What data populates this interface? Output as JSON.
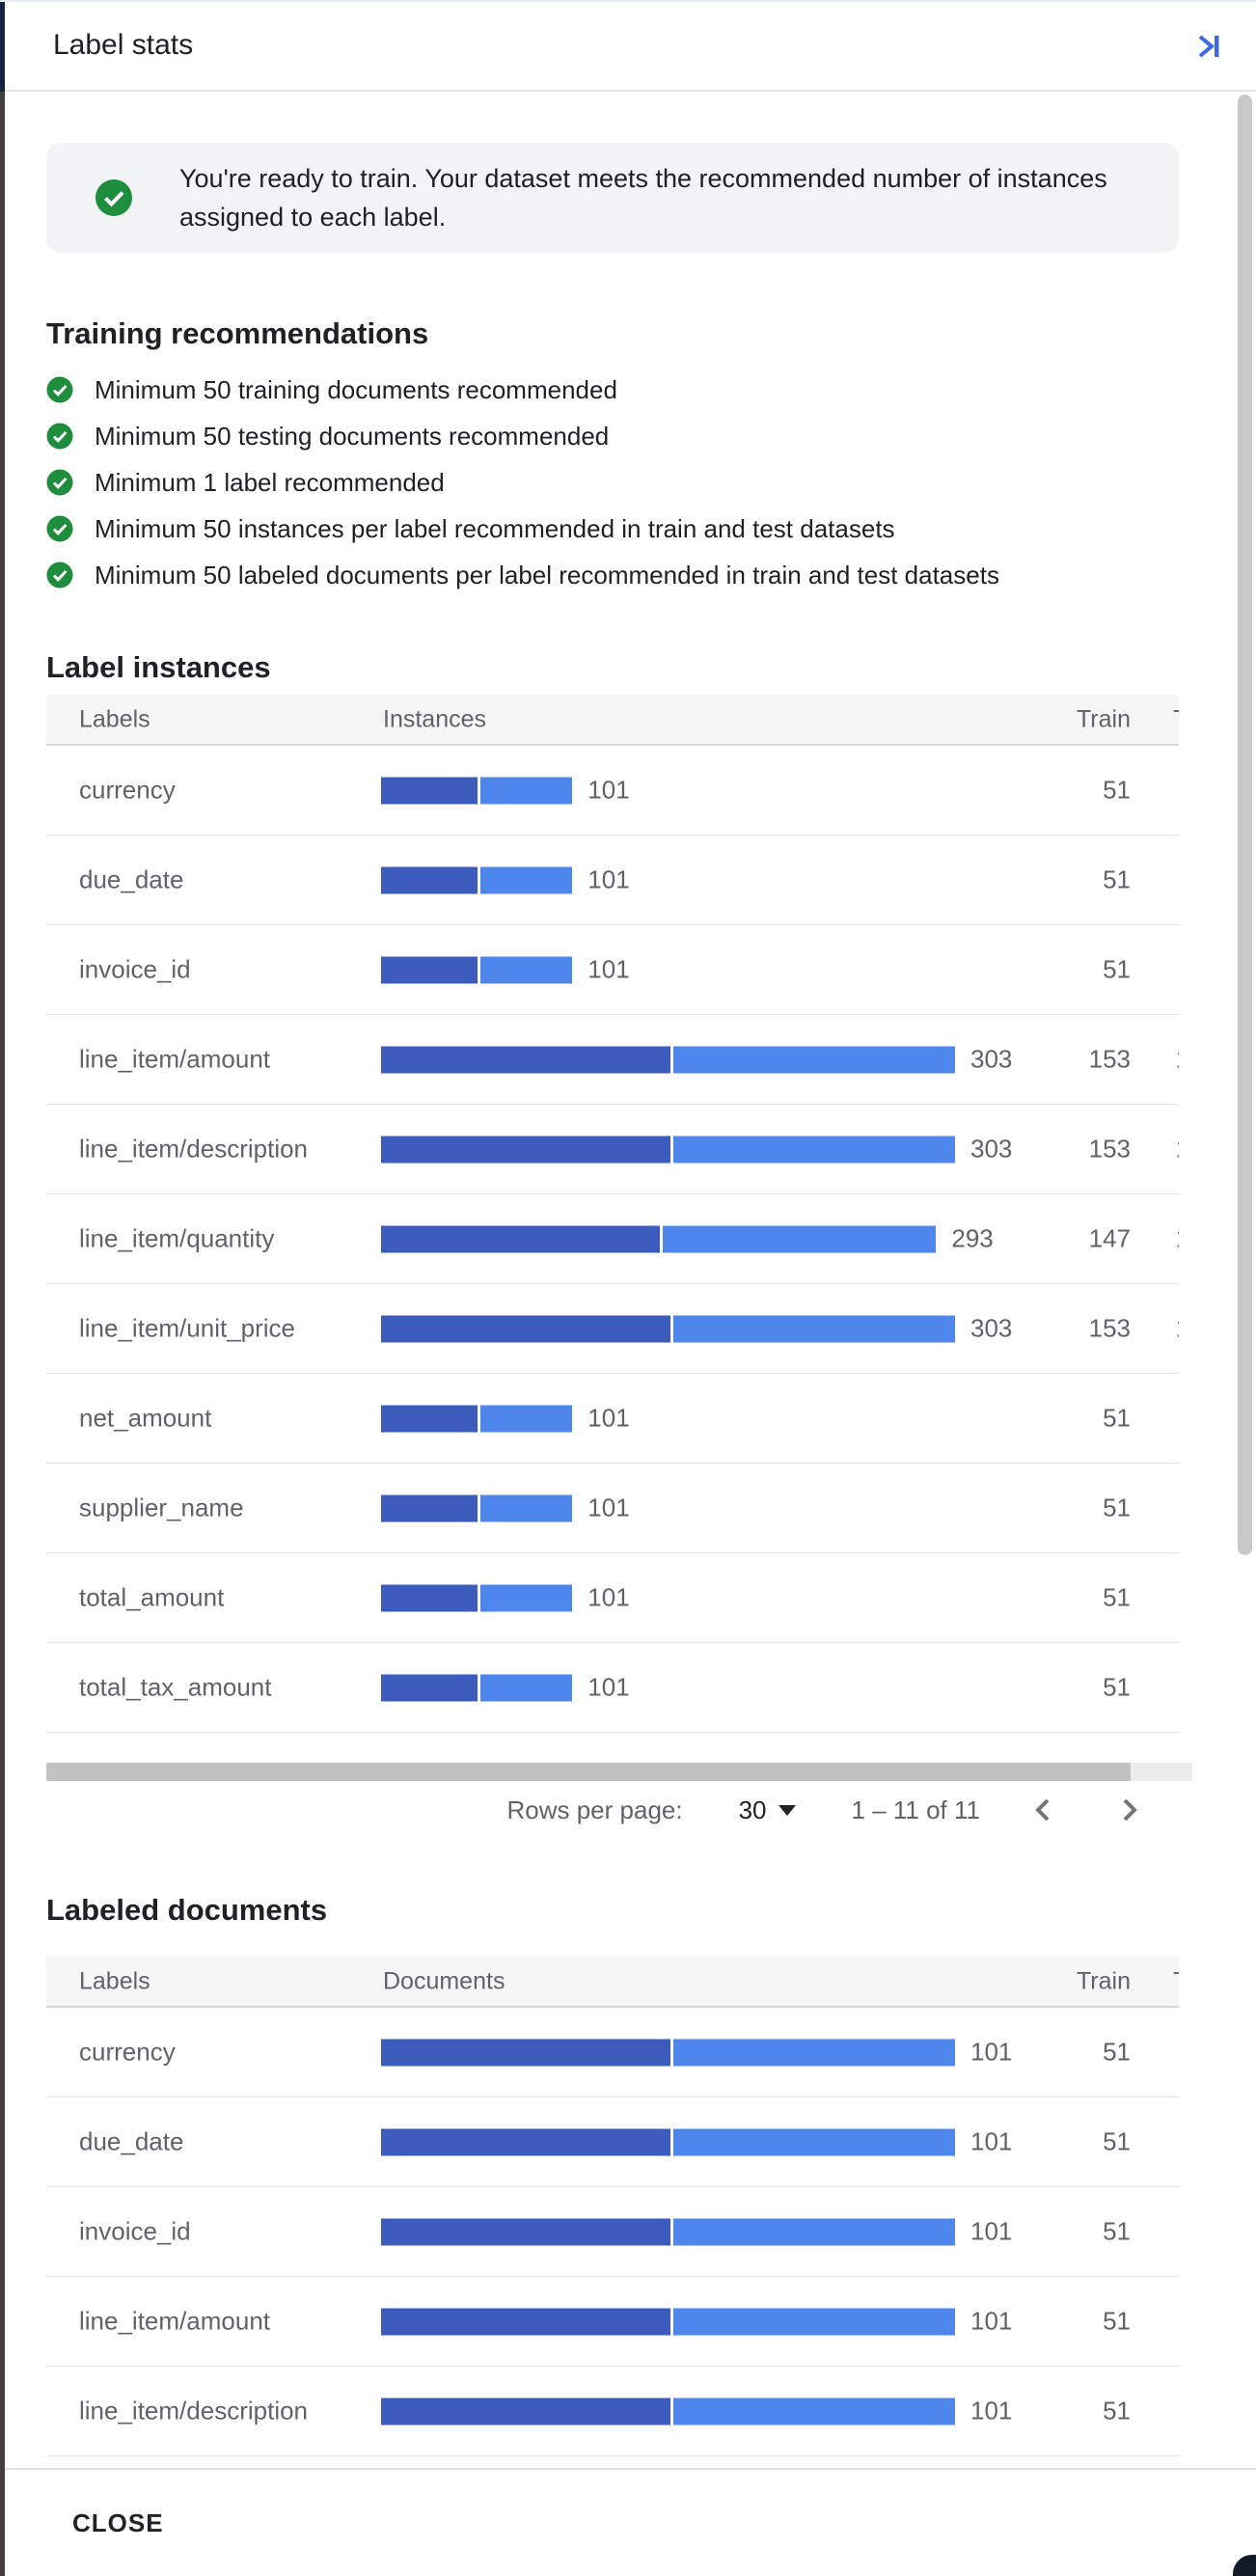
{
  "panel": {
    "title": "Label stats"
  },
  "icons": {
    "collapse": "collapse-panel-right-icon",
    "check": "check-circle-icon"
  },
  "colors": {
    "bar_train": "#3b5bbd",
    "bar_test": "#4e86ec",
    "success_green": "#1e8e3e",
    "accent_blue": "#3b6ae0",
    "chevron_grey": "#757575"
  },
  "banner": {
    "text": "You're ready to train. Your dataset meets the recommended number of instances assigned to each label."
  },
  "recommendations": {
    "heading": "Training recommendations",
    "items": [
      "Minimum 50 training documents recommended",
      "Minimum 50 testing documents recommended",
      "Minimum 1 label recommended",
      "Minimum 50 instances per label recommended in train and test datasets",
      "Minimum 50 labeled documents per label recommended in train and test datasets"
    ]
  },
  "instances_section": {
    "heading": "Label instances",
    "columns": {
      "labels": "Labels",
      "bar": "Instances",
      "train": "Train",
      "test": "Test"
    },
    "bar_max": 303,
    "rows": [
      {
        "label": "currency",
        "value": 101,
        "train": 51
      },
      {
        "label": "due_date",
        "value": 101,
        "train": 51
      },
      {
        "label": "invoice_id",
        "value": 101,
        "train": 51
      },
      {
        "label": "line_item/amount",
        "value": 303,
        "train": 153
      },
      {
        "label": "line_item/description",
        "value": 303,
        "train": 153
      },
      {
        "label": "line_item/quantity",
        "value": 293,
        "train": 147
      },
      {
        "label": "line_item/unit_price",
        "value": 303,
        "train": 153
      },
      {
        "label": "net_amount",
        "value": 101,
        "train": 51
      },
      {
        "label": "supplier_name",
        "value": 101,
        "train": 51
      },
      {
        "label": "total_amount",
        "value": 101,
        "train": 51
      },
      {
        "label": "total_tax_amount",
        "value": 101,
        "train": 51
      }
    ],
    "pagination": {
      "rows_per_page_label": "Rows per page:",
      "rows_per_page": "30",
      "range": "1 – 11 of 11"
    }
  },
  "documents_section": {
    "heading": "Labeled documents",
    "columns": {
      "labels": "Labels",
      "bar": "Documents",
      "train": "Train",
      "test": "Test"
    },
    "bar_max": 101,
    "rows": [
      {
        "label": "currency",
        "value": 101,
        "train": 51
      },
      {
        "label": "due_date",
        "value": 101,
        "train": 51
      },
      {
        "label": "invoice_id",
        "value": 101,
        "train": 51
      },
      {
        "label": "line_item/amount",
        "value": 101,
        "train": 51
      },
      {
        "label": "line_item/description",
        "value": 101,
        "train": 51
      }
    ]
  },
  "footer": {
    "close_label": "CLOSE"
  }
}
